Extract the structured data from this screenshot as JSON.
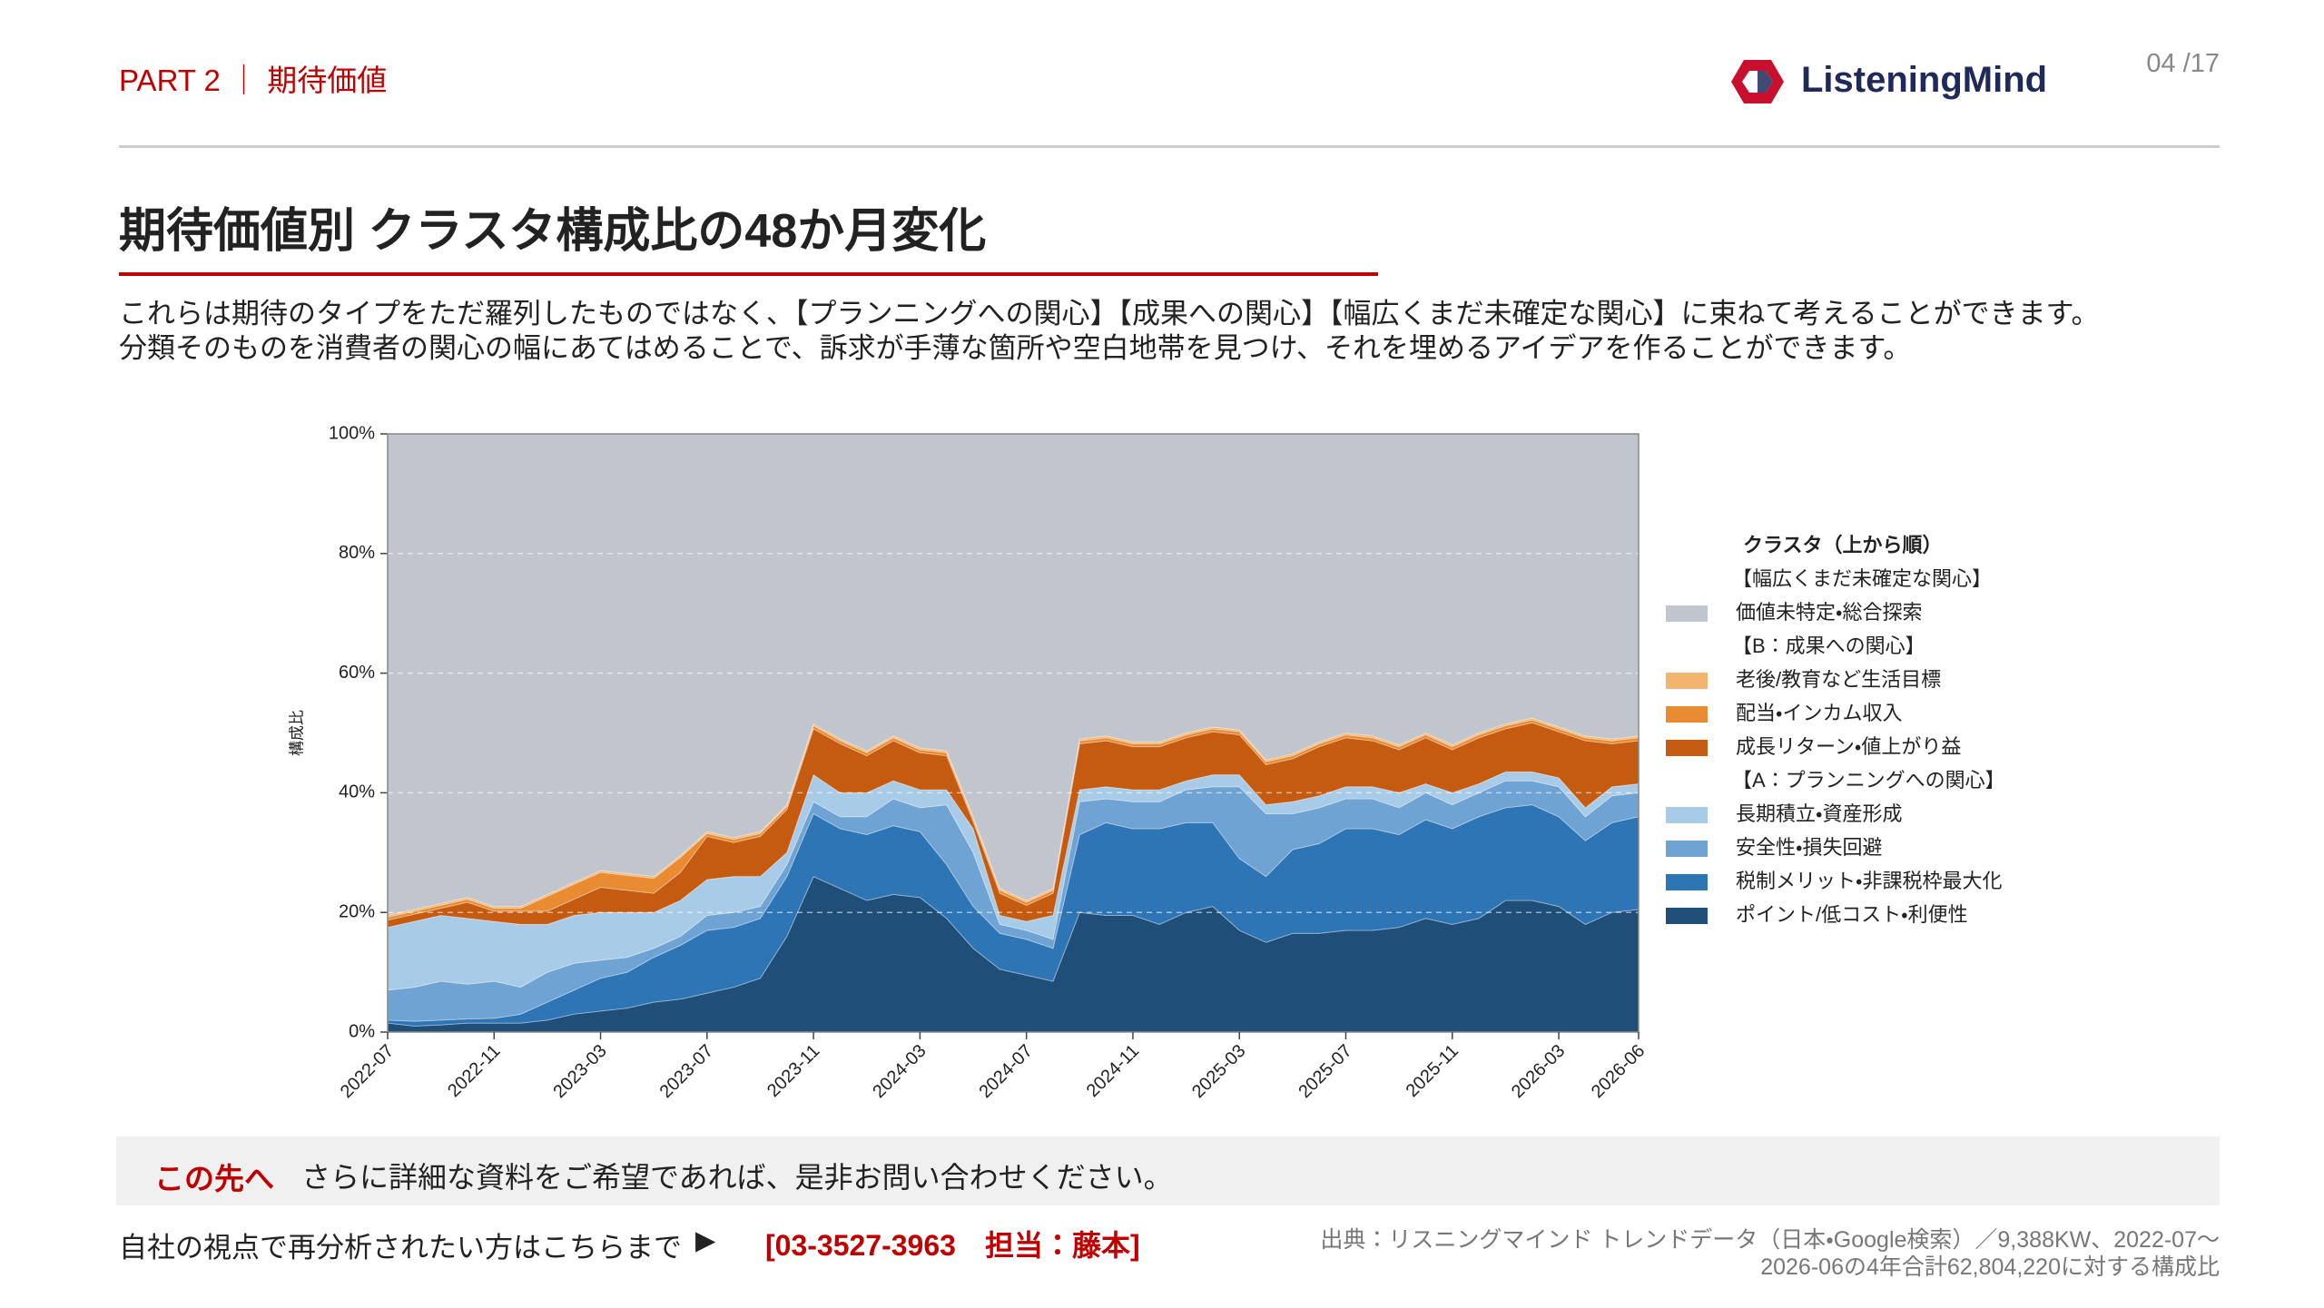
{
  "header": {
    "part": "PART 2 ｜ 期待価値",
    "page": "04 /17",
    "brand": "ListeningMind"
  },
  "title": "期待価値別 クラスタ構成比の48か月変化",
  "description": [
    "これらは期待のタイプをただ羅列したものではなく、【プランニングへの関心】【成果への関心】【幅広くまだ未確定な関心】に束ねて考えることができます。",
    "分類そのものを消費者の関心の幅にあてはめることで、訴求が手薄な箇所や空白地帯を見つけ、それを埋めるアイデアを作ることができます。"
  ],
  "chart_data": {
    "type": "stacked-area",
    "ylabel": "構成比",
    "categories": [
      "2022-07",
      null,
      null,
      null,
      "2022-11",
      null,
      null,
      null,
      "2023-03",
      null,
      null,
      null,
      "2023-07",
      null,
      null,
      null,
      "2023-11",
      null,
      null,
      null,
      "2024-03",
      null,
      null,
      null,
      "2024-07",
      null,
      null,
      null,
      "2024-11",
      null,
      null,
      null,
      "2025-03",
      null,
      null,
      null,
      "2025-07",
      null,
      null,
      null,
      "2025-11",
      null,
      null,
      null,
      "2026-03",
      null,
      null,
      "2026-06"
    ],
    "ylim": [
      0,
      100
    ],
    "yticks": [
      {
        "value": 0,
        "label": "0%"
      },
      {
        "value": 20,
        "label": "20%"
      },
      {
        "value": 40,
        "label": "40%"
      },
      {
        "value": 60,
        "label": "60%"
      },
      {
        "value": 80,
        "label": "80%"
      },
      {
        "value": 100,
        "label": "100%"
      }
    ],
    "grid": true,
    "legend_title": "クラスタ（上から順）",
    "legend_groups": [
      "【幅広くまだ未確定な関心】",
      "【B：成果への関心】",
      "【A：プランニングへの関心】"
    ],
    "series": [
      {
        "name": "ポイント/低コスト・利便性",
        "color": "#1f4e79",
        "values": [
          1.5,
          1,
          1.2,
          1.5,
          1.5,
          1.5,
          2,
          3,
          3.5,
          4,
          5,
          5.5,
          6.5,
          7.5,
          9,
          16,
          26,
          24,
          22,
          23,
          22.5,
          19,
          14,
          10.5,
          9.5,
          8.5,
          20,
          19.5,
          19.5,
          18,
          20,
          21,
          17,
          15,
          16.5,
          16.5,
          17,
          17,
          17.5,
          19,
          18,
          19,
          22,
          22,
          21,
          18,
          20,
          20.5
        ]
      },
      {
        "name": "税制メリット・非課税枠最大化",
        "color": "#2e75b6",
        "values": [
          0.5,
          0.8,
          0.8,
          0.7,
          0.8,
          1.5,
          3,
          4,
          5.5,
          6,
          7.5,
          9,
          10.5,
          10,
          10,
          10,
          10.5,
          10,
          11,
          11.5,
          11,
          9,
          7,
          6,
          6,
          5.5,
          13,
          15.5,
          14.5,
          16,
          15,
          14,
          12,
          11,
          14,
          15,
          17,
          17,
          15.5,
          16.5,
          16,
          17,
          15.5,
          16,
          15,
          14,
          15,
          15.5
        ]
      },
      {
        "name": "安全性・損失回避",
        "color": "#6fa3d3",
        "values": [
          5,
          5.7,
          6.5,
          5.8,
          6.2,
          4.5,
          5,
          4.5,
          3,
          2.5,
          1.5,
          1.5,
          2.5,
          2.5,
          2,
          2,
          2,
          2,
          3,
          4.5,
          4,
          10,
          9,
          1.5,
          1.5,
          1.5,
          5.5,
          4,
          4.5,
          4.5,
          5.5,
          6,
          12,
          10.5,
          6,
          6,
          5,
          5,
          4.5,
          4.5,
          4,
          4,
          4.5,
          4,
          5,
          4,
          4.5,
          4
        ]
      },
      {
        "name": "長期積立・資産形成",
        "color": "#a8cbe7",
        "values": [
          10.5,
          11,
          11,
          11,
          10,
          10.5,
          8,
          8,
          8,
          7.5,
          6,
          6,
          6,
          6,
          5,
          2,
          4.5,
          4,
          4,
          3,
          3,
          2.5,
          4,
          1.5,
          1.5,
          4,
          2,
          2,
          2,
          2,
          1.5,
          2,
          2,
          1.5,
          2,
          2,
          2,
          2,
          2.5,
          1.5,
          2,
          1.5,
          1.5,
          1.5,
          1.5,
          1.5,
          1.5,
          1.5
        ]
      },
      {
        "name": "成長リターン・値上がり益",
        "color": "#c55a11",
        "values": [
          1.2,
          1.2,
          1.2,
          2.7,
          1.7,
          2.2,
          2.2,
          2.7,
          4.2,
          3.7,
          3.2,
          4.7,
          7.2,
          5.7,
          6.7,
          7.2,
          7.7,
          8.2,
          6.2,
          6.7,
          6.2,
          5.7,
          1.2,
          3.7,
          2.7,
          3.7,
          7.7,
          7.7,
          7.2,
          7.2,
          7.2,
          7.2,
          6.7,
          6.7,
          7.2,
          8.2,
          8.2,
          7.7,
          7.2,
          7.7,
          7.2,
          7.7,
          7.2,
          8.2,
          7.7,
          11.2,
          7.2,
          7.2
        ]
      },
      {
        "name": "配当・インカム収入",
        "color": "#e88b33",
        "values": [
          0.5,
          0.5,
          0.5,
          0.5,
          0.5,
          0.5,
          2.5,
          2.5,
          2.5,
          2.5,
          2.5,
          2.5,
          0.5,
          0.5,
          0.5,
          0.5,
          0.5,
          0.5,
          0.5,
          0.5,
          0.5,
          0.5,
          0.5,
          0.5,
          0.5,
          0.5,
          0.5,
          0.5,
          0.5,
          0.5,
          0.5,
          0.5,
          0.5,
          0.5,
          0.5,
          0.5,
          0.5,
          0.5,
          0.5,
          0.5,
          0.5,
          0.5,
          0.5,
          0.5,
          0.5,
          0.5,
          0.5,
          0.5
        ]
      },
      {
        "name": "老後/教育など生活目標",
        "color": "#f2b46e",
        "values": [
          0.3,
          0.3,
          0.3,
          0.3,
          0.3,
          0.3,
          0.3,
          0.3,
          0.3,
          0.3,
          0.3,
          0.3,
          0.3,
          0.3,
          0.3,
          0.3,
          0.3,
          0.3,
          0.3,
          0.3,
          0.3,
          0.3,
          0.3,
          0.3,
          0.3,
          0.3,
          0.3,
          0.3,
          0.3,
          0.3,
          0.3,
          0.3,
          0.3,
          0.3,
          0.3,
          0.3,
          0.3,
          0.3,
          0.3,
          0.3,
          0.3,
          0.3,
          0.3,
          0.3,
          0.3,
          0.3,
          0.3,
          0.3
        ]
      },
      {
        "name": "価値未特定・総合探索",
        "color": "#c1c5cd",
        "values": [
          80.5,
          79.5,
          78.5,
          77.5,
          79,
          79,
          77,
          75,
          73,
          73.5,
          74,
          70.5,
          66.5,
          67.5,
          66.5,
          62,
          48.5,
          51,
          53,
          50.5,
          52.5,
          53,
          64,
          76,
          78,
          76,
          51,
          50.5,
          51.5,
          51.5,
          50,
          49,
          49.5,
          54.5,
          53.5,
          51.5,
          50,
          50.5,
          52,
          50,
          52,
          50,
          48.5,
          47.5,
          49,
          50.5,
          51,
          50.5
        ]
      }
    ]
  },
  "cta": {
    "label": "この先へ",
    "text": "さらに詳細な資料をご希望であれば、是非お問い合わせください。"
  },
  "contact": {
    "text": "自社の視点で再分析されたい方はこちらまで",
    "arrow": "▶",
    "phone": "[03-3527-3963　担当：藤本]"
  },
  "source": [
    "出典：リスニングマインド トレンドデータ（日本・Google検索）／9,388KW、2022-07〜",
    "2026-06の4年合計62,804,220に対する構成比"
  ]
}
